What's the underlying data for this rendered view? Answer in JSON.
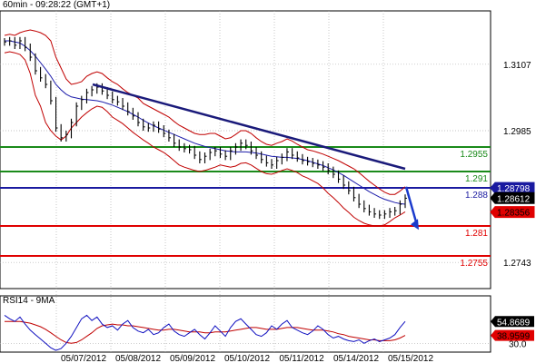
{
  "title": "60min - 09:28:22 (GMT+1)",
  "rsi_label": "RSI14 - 9MA",
  "colors": {
    "bg": "#ffffff",
    "price": "#000000",
    "bollinger": "#c00000",
    "ma": "#1c1caa",
    "trend": "#1a1a7a",
    "green_level": "#1a8a1a",
    "blue_level": "#1a1aa0",
    "red_level": "#e00000",
    "arrow": "#1a3acc",
    "rsi": "#1010c0",
    "rsi_ma": "#c00000",
    "grid": "#b0b0b0"
  },
  "chart_data": {
    "type": "line",
    "title": "60min - 09:28:22 (GMT+1)",
    "ylim": [
      1.2695,
      1.3205
    ],
    "y_ticks": [
      "1.3107",
      "1.2985",
      "1.2743"
    ],
    "x_ticks": [
      "05/07/2012",
      "05/08/2012",
      "05/09/2012",
      "05/10/2012",
      "05/11/2012",
      "05/14/2012",
      "05/15/2012"
    ],
    "grid": true,
    "levels": [
      {
        "label": "1.2955",
        "value": 1.2955,
        "color": "green"
      },
      {
        "label": "1.291",
        "value": 1.291,
        "color": "green"
      },
      {
        "label": "1.288",
        "value": 1.288,
        "color": "blue"
      },
      {
        "label": "1.281",
        "value": 1.281,
        "color": "red"
      },
      {
        "label": "1.2755",
        "value": 1.2755,
        "color": "red"
      }
    ],
    "price_tags": [
      {
        "label": "1.28798",
        "value": 1.28798,
        "style": "blue"
      },
      {
        "label": "1.28612",
        "value": 1.28612,
        "style": "black"
      },
      {
        "label": "1.28356",
        "value": 1.28356,
        "style": "red"
      }
    ],
    "trendline": {
      "from": [
        0.22,
        1.307
      ],
      "to": [
        0.89,
        1.2915
      ]
    },
    "series": [
      {
        "values": [
          1.3148,
          1.315,
          1.3142,
          1.315,
          1.3138,
          1.312,
          1.3095,
          1.3082,
          1.307,
          1.304,
          1.299,
          1.2972,
          1.2978,
          1.3,
          1.303,
          1.3042,
          1.3055,
          1.306,
          1.3065,
          1.3058,
          1.305,
          1.3042,
          1.3038,
          1.303,
          1.302,
          1.3012,
          1.3,
          1.2992,
          1.299,
          1.2995,
          1.2988,
          1.298,
          1.2972,
          1.2962,
          1.2955,
          1.2952,
          1.295,
          1.294,
          1.2932,
          1.2938,
          1.2945,
          1.2948,
          1.2942,
          1.2938,
          1.2948,
          1.2955,
          1.2962,
          1.2958,
          1.2948,
          1.294,
          1.2932,
          1.2926,
          1.2922,
          1.293,
          1.2936,
          1.2946,
          1.294,
          1.2935,
          1.293,
          1.2928,
          1.2925,
          1.2922,
          1.2918,
          1.2912,
          1.2905,
          1.2896,
          1.2885,
          1.2875,
          1.2862,
          1.285,
          1.2842,
          1.2836,
          1.2832,
          1.283,
          1.2832,
          1.2836,
          1.2838,
          1.285,
          1.2861
        ]
      },
      {
        "values": [
          1.315,
          1.315,
          1.3148,
          1.3146,
          1.314,
          1.3132,
          1.3122,
          1.311,
          1.3098,
          1.3085,
          1.307,
          1.306,
          1.3052,
          1.3047,
          1.3045,
          1.3043,
          1.3042,
          1.3041,
          1.304,
          1.3038,
          1.3035,
          1.3032,
          1.3028,
          1.3024,
          1.302,
          1.3015,
          1.301,
          1.3004,
          1.2999,
          1.2994,
          1.299,
          1.2986,
          1.2982,
          1.2978,
          1.2974,
          1.297,
          1.2966,
          1.2962,
          1.2959,
          1.2956,
          1.2954,
          1.2952,
          1.295,
          1.2948,
          1.2947,
          1.2946,
          1.2946,
          1.2946,
          1.2945,
          1.2944,
          1.2942,
          1.294,
          1.2938,
          1.2937,
          1.2936,
          1.2936,
          1.2935,
          1.2934,
          1.2932,
          1.293,
          1.2927,
          1.2924,
          1.2921,
          1.2917,
          1.2913,
          1.2908,
          1.2903,
          1.2897,
          1.2891,
          1.2885,
          1.2879,
          1.2873,
          1.2868,
          1.2863,
          1.2859,
          1.2856,
          1.2853,
          1.2851,
          1.285
        ]
      },
      {
        "values": [
          1.316,
          1.3162,
          1.316,
          1.3165,
          1.3168,
          1.317,
          1.3168,
          1.3165,
          1.316,
          1.315,
          1.312,
          1.31,
          1.308,
          1.307,
          1.3072,
          1.3075,
          1.3085,
          1.309,
          1.3093,
          1.309,
          1.3082,
          1.3075,
          1.307,
          1.3062,
          1.3055,
          1.305,
          1.3045,
          1.3035,
          1.303,
          1.3025,
          1.302,
          1.3015,
          1.301,
          1.3002,
          1.2995,
          1.299,
          1.2985,
          1.298,
          1.2978,
          1.2978,
          1.298,
          1.298,
          1.2975,
          1.297,
          1.2972,
          1.2978,
          1.2985,
          1.2985,
          1.298,
          1.2972,
          1.2965,
          1.296,
          1.2958,
          1.2962,
          1.2965,
          1.297,
          1.2966,
          1.296,
          1.2955,
          1.295,
          1.2948,
          1.2945,
          1.2942,
          1.2938,
          1.2934,
          1.293,
          1.2925,
          1.292,
          1.2915,
          1.2908,
          1.29,
          1.2892,
          1.2885,
          1.2878,
          1.2872,
          1.2868,
          1.2868,
          1.2874,
          1.2882
        ]
      },
      {
        "values": [
          1.3128,
          1.313,
          1.3128,
          1.3125,
          1.3115,
          1.309,
          1.305,
          1.303,
          1.3,
          1.2985,
          1.2975,
          1.2968,
          1.2975,
          1.299,
          1.3,
          1.301,
          1.3018,
          1.3025,
          1.303,
          1.3028,
          1.302,
          1.301,
          1.3004,
          1.2998,
          1.299,
          1.2982,
          1.2975,
          1.2968,
          1.2962,
          1.2955,
          1.295,
          1.2945,
          1.2938,
          1.293,
          1.2922,
          1.2918,
          1.2915,
          1.2912,
          1.291,
          1.2912,
          1.2915,
          1.2918,
          1.2922,
          1.292,
          1.2918,
          1.292,
          1.2925,
          1.2926,
          1.2922,
          1.2916,
          1.291,
          1.2906,
          1.2905,
          1.2908,
          1.2912,
          1.2915,
          1.2912,
          1.2908,
          1.2902,
          1.2898,
          1.2893,
          1.2888,
          1.288,
          1.287,
          1.2862,
          1.2853,
          1.2843,
          1.2835,
          1.2826,
          1.282,
          1.2815,
          1.2812,
          1.281,
          1.281,
          1.2812,
          1.2818,
          1.2825,
          1.283,
          1.2836
        ]
      }
    ],
    "rsi": {
      "label": "RSI14 - 9MA",
      "ylim": [
        20,
        80
      ],
      "y_ticks": [
        "30.0"
      ],
      "value_tags": [
        {
          "label": "54.8689",
          "value": 54.8689
        },
        {
          "label": "38.9599",
          "value": 38.9599
        }
      ],
      "series": [
        {
          "values": [
            62,
            58,
            55,
            60,
            52,
            45,
            40,
            35,
            30,
            25,
            22,
            24,
            30,
            38,
            48,
            58,
            62,
            56,
            60,
            52,
            48,
            50,
            45,
            52,
            56,
            48,
            44,
            42,
            46,
            40,
            42,
            48,
            52,
            44,
            40,
            38,
            42,
            46,
            40,
            35,
            42,
            50,
            44,
            38,
            48,
            55,
            58,
            52,
            46,
            40,
            38,
            42,
            50,
            46,
            52,
            56,
            48,
            45,
            42,
            40,
            44,
            50,
            46,
            40,
            36,
            38,
            35,
            33,
            32,
            34,
            30,
            33,
            35,
            32,
            34,
            36,
            40,
            48,
            55
          ]
        },
        {
          "values": [
            55,
            55,
            55,
            55,
            54,
            53,
            51,
            49,
            46,
            42,
            38,
            34,
            31,
            30,
            31,
            34,
            38,
            42,
            47,
            50,
            51,
            52,
            51,
            51,
            50,
            50,
            49,
            48,
            47,
            46,
            45,
            45,
            46,
            46,
            45,
            44,
            43,
            43,
            43,
            42,
            42,
            43,
            43,
            43,
            44,
            45,
            46,
            47,
            48,
            48,
            47,
            46,
            46,
            46,
            47,
            48,
            48,
            48,
            47,
            46,
            45,
            45,
            45,
            44,
            43,
            41,
            40,
            38,
            37,
            36,
            35,
            34,
            34,
            33,
            33,
            33,
            34,
            36,
            39
          ]
        }
      ]
    }
  }
}
